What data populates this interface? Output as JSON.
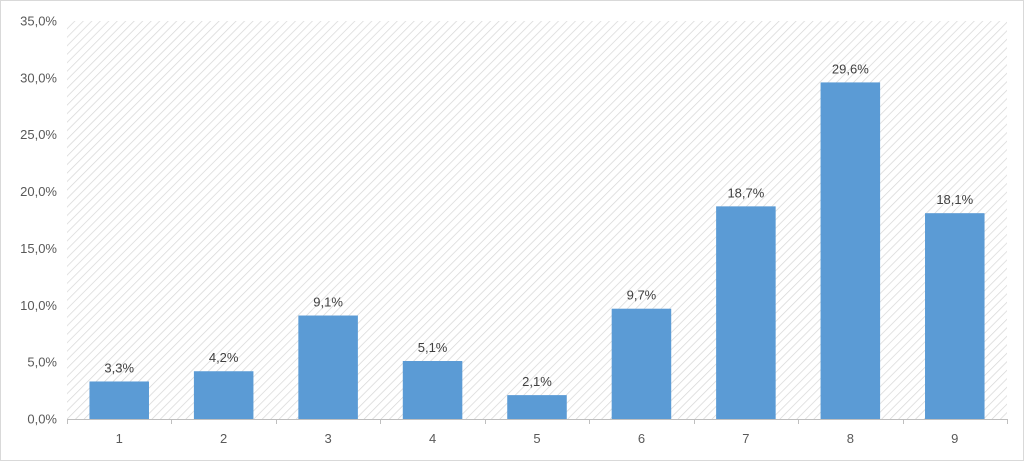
{
  "chart_data": {
    "type": "bar",
    "categories": [
      "1",
      "2",
      "3",
      "4",
      "5",
      "6",
      "7",
      "8",
      "9"
    ],
    "values": [
      3.3,
      4.2,
      9.1,
      5.1,
      2.1,
      9.7,
      18.7,
      29.6,
      18.1
    ],
    "data_labels": [
      "3,3%",
      "4,2%",
      "9,1%",
      "5,1%",
      "2,1%",
      "9,7%",
      "18,7%",
      "29,6%",
      "18,1%"
    ],
    "ylim": [
      0,
      35
    ],
    "yticks": [
      0,
      5,
      10,
      15,
      20,
      25,
      30,
      35
    ],
    "ytick_labels": [
      "0,0%",
      "5,0%",
      "10,0%",
      "15,0%",
      "20,0%",
      "25,0%",
      "30,0%",
      "35,0%"
    ],
    "title": "",
    "xlabel": "",
    "ylabel": "",
    "legend": "none",
    "plot_background": "diagonal hatch",
    "bar_color": "#5b9bd5",
    "axis_color": "#bfbfbf",
    "text_color": "#595959"
  }
}
